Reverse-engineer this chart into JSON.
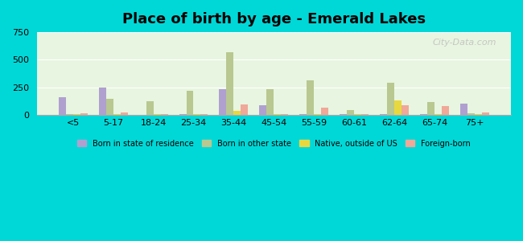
{
  "title": "Place of birth by age - Emerald Lakes",
  "categories": [
    "<5",
    "5-17",
    "18-24",
    "25-34",
    "35-44",
    "45-54",
    "55-59",
    "60-61",
    "62-64",
    "65-74",
    "75+"
  ],
  "series": {
    "Born in state of residence": [
      160,
      245,
      0,
      5,
      235,
      90,
      5,
      10,
      5,
      10,
      100
    ],
    "Born in other state": [
      5,
      145,
      125,
      220,
      565,
      235,
      310,
      45,
      295,
      115,
      15
    ],
    "Native, outside of US": [
      5,
      5,
      5,
      5,
      35,
      5,
      5,
      5,
      130,
      5,
      5
    ],
    "Foreign-born": [
      15,
      20,
      10,
      10,
      95,
      10,
      65,
      5,
      90,
      80,
      20
    ]
  },
  "colors": {
    "Born in state of residence": "#b0a0d0",
    "Born in other state": "#b8c890",
    "Native, outside of US": "#e8d840",
    "Foreign-born": "#f0a898"
  },
  "ylim": [
    0,
    750
  ],
  "yticks": [
    0,
    250,
    500,
    750
  ],
  "background_top": "#e8f5e0",
  "background_bottom": "#d0f0e8",
  "figure_bg": "#00d8d8",
  "legend_labels": [
    "Born in state of residence",
    "Born in other state",
    "Native, outside of US",
    "Foreign-born"
  ]
}
